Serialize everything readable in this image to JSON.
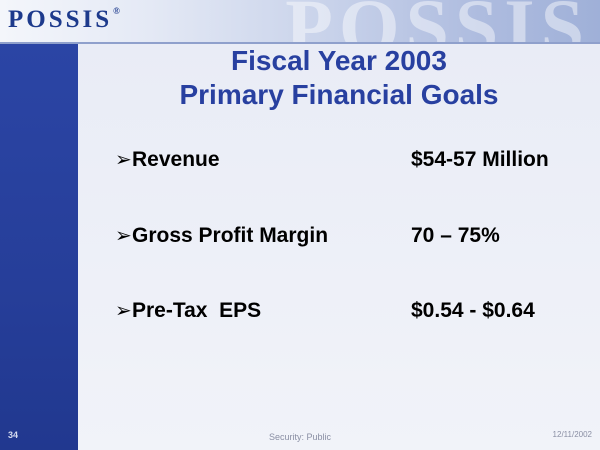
{
  "header": {
    "logo_text": "POSSIS",
    "logo_mark": "®",
    "watermark": "POSSIS"
  },
  "slide": {
    "title_line1": "Fiscal Year 2003",
    "title_line2": "Primary Financial Goals",
    "bullet_glyph": "➢",
    "items": [
      {
        "label": "Revenue",
        "value": "$54-57 Million"
      },
      {
        "label": "Gross Profit Margin",
        "value": "70 – 75%"
      },
      {
        "label": "Pre-Tax  EPS",
        "value": "$0.54 - $0.64"
      }
    ]
  },
  "footer": {
    "page_number": "34",
    "security": "Security: Public",
    "date": "12/11/2002"
  },
  "colors": {
    "brand_blue": "#2840a0",
    "band_blue": "#263e99"
  }
}
